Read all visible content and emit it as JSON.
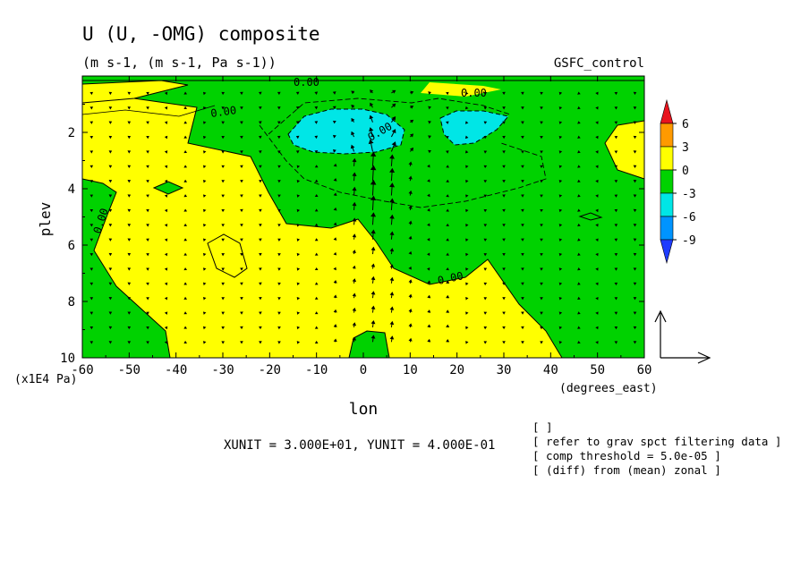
{
  "chart_data": {
    "type": "heatmap",
    "title": "U (U, -OMG) composite",
    "subtitle": "(m s-1, (m s-1, Pa s-1))",
    "run_label": "GSFC_control",
    "xlabel": "lon",
    "ylabel": "plev",
    "x_unit_label": "(degrees_east)",
    "y_unit_label": "(x1E4 Pa)",
    "xlim": [
      -60,
      60
    ],
    "ylim": [
      0,
      10
    ],
    "y_inverted": true,
    "x_ticks": [
      "-60",
      "-50",
      "-40",
      "-30",
      "-20",
      "-10",
      "0",
      "10",
      "20",
      "30",
      "40",
      "50",
      "60"
    ],
    "y_ticks": [
      "2",
      "4",
      "6",
      "8",
      "10"
    ],
    "grid": false,
    "colorbar": {
      "placement": "right",
      "levels": [
        "6",
        "3",
        "0",
        "-3",
        "-6",
        "-9"
      ],
      "colors": {
        "above_6": "#e8141e",
        "3_to_6": "#ff9a00",
        "0_to_3": "#ffff00",
        "-3_to_0": "#00d200",
        "-6_to_-3": "#00e6e6",
        "-9_to_-6": "#0094ff",
        "below_-9": "#1e3cff"
      }
    },
    "contour_labels": [
      "0.00",
      "0.00",
      "0.00",
      "0.00",
      "0.00",
      "0.00"
    ],
    "regions": [
      {
        "name": "positive_west",
        "value_range": [
          0,
          3
        ],
        "color": "#ffff00"
      },
      {
        "name": "positive_east",
        "value_range": [
          0,
          3
        ],
        "color": "#ffff00"
      },
      {
        "name": "negative_upper",
        "value_range": [
          -3,
          0
        ],
        "color": "#00d200"
      },
      {
        "name": "strong_negative_center",
        "value_range": [
          -6,
          -3
        ],
        "color": "#00e6e6",
        "lon_range": [
          -14,
          6
        ],
        "plev_range": [
          1.3,
          2.7
        ]
      },
      {
        "name": "strong_negative_east",
        "value_range": [
          -6,
          -3
        ],
        "color": "#00e6e6",
        "lon_range": [
          17,
          30
        ],
        "plev_range": [
          1.2,
          2.6
        ]
      }
    ],
    "vector_reference": {
      "xunit_text": "XUNIT = 3.000E+01, YUNIT = 4.000E-01"
    },
    "annotations": [
      "[  ]",
      "[ refer to grav spct filtering data ]",
      "[ comp threshold = 5.0e-05 ]",
      "[ (diff) from (mean) zonal ]"
    ]
  }
}
